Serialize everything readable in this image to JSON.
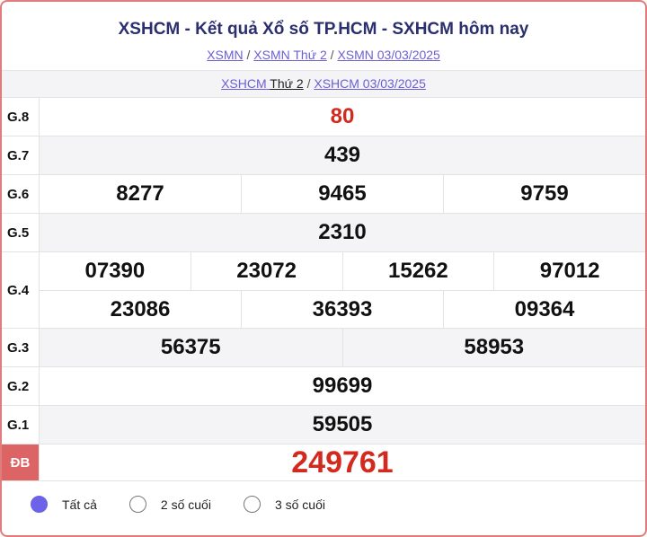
{
  "header": {
    "title": "XSHCM - Kết quả Xổ số TP.HCM - SXHCM hôm nay",
    "breadcrumb": [
      "XSMN",
      "XSMN Thứ 2",
      "XSMN 03/03/2025"
    ],
    "sub_breadcrumb": {
      "link1": "XSHCM",
      "link1_suffix": "Thứ 2",
      "link2": "XSHCM 03/03/2025"
    },
    "separator": "/"
  },
  "prizes": [
    {
      "label": "G.8",
      "lines": [
        [
          "80"
        ]
      ],
      "highlight": true
    },
    {
      "label": "G.7",
      "lines": [
        [
          "439"
        ]
      ]
    },
    {
      "label": "G.6",
      "lines": [
        [
          "8277",
          "9465",
          "9759"
        ]
      ]
    },
    {
      "label": "G.5",
      "lines": [
        [
          "2310"
        ]
      ]
    },
    {
      "label": "G.4",
      "lines": [
        [
          "07390",
          "23072",
          "15262",
          "97012"
        ],
        [
          "23086",
          "36393",
          "09364"
        ]
      ]
    },
    {
      "label": "G.3",
      "lines": [
        [
          "56375",
          "58953"
        ]
      ]
    },
    {
      "label": "G.2",
      "lines": [
        [
          "99699"
        ]
      ]
    },
    {
      "label": "G.1",
      "lines": [
        [
          "59505"
        ]
      ]
    },
    {
      "label": "ĐB",
      "lines": [
        [
          "249761"
        ]
      ],
      "highlight": true,
      "special": true
    }
  ],
  "filters": [
    {
      "label": "Tất cả",
      "selected": true
    },
    {
      "label": "2 số cuối",
      "selected": false
    },
    {
      "label": "3 số cuối",
      "selected": false
    }
  ],
  "colors": {
    "accent": "#6c63e8",
    "special_label_bg": "#dc6464",
    "highlight_number": "#d22a1e",
    "title": "#2b2f6e"
  }
}
